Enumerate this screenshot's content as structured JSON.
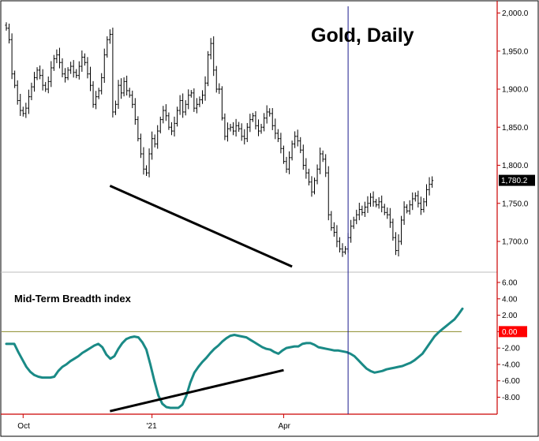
{
  "colors": {
    "background": "#ffffff",
    "frame": "#000000",
    "price_axis": "#cc0000",
    "bars": "#000000",
    "trendlines": "#000000",
    "breadth_line": "#1a8a86",
    "zero_line": "#8b8b2a",
    "vertical_marker": "#1c1c8c",
    "last_price_box": "#000000",
    "zero_box": "#ff0000"
  },
  "chart_data": [
    {
      "type": "ohlc",
      "title": "Gold, Daily",
      "ylim": [
        1655,
        2010
      ],
      "y_ticks": [
        {
          "value": 2000,
          "label": "2,000.0"
        },
        {
          "value": 1950,
          "label": "1,950.0"
        },
        {
          "value": 1900,
          "label": "1,900.0"
        },
        {
          "value": 1850,
          "label": "1,850.0"
        },
        {
          "value": 1800,
          "label": "1,800.0"
        },
        {
          "value": 1750,
          "label": "1,750.0"
        },
        {
          "value": 1700,
          "label": "1,700.0"
        }
      ],
      "last_price": {
        "value": 1780.2,
        "label": "1,780.2"
      },
      "trendline": {
        "from": {
          "bar": 37,
          "value": 1773
        },
        "to": {
          "bar": 102,
          "value": 1667
        }
      },
      "vertical_marker_bar": 122,
      "closes": [
        1980,
        1965,
        1920,
        1905,
        1885,
        1872,
        1868,
        1875,
        1890,
        1903,
        1915,
        1925,
        1918,
        1905,
        1900,
        1910,
        1928,
        1940,
        1945,
        1935,
        1920,
        1915,
        1925,
        1930,
        1922,
        1918,
        1930,
        1942,
        1935,
        1920,
        1905,
        1880,
        1890,
        1898,
        1915,
        1945,
        1965,
        1972,
        1870,
        1880,
        1905,
        1895,
        1910,
        1898,
        1892,
        1880,
        1860,
        1835,
        1815,
        1795,
        1790,
        1815,
        1835,
        1828,
        1845,
        1860,
        1872,
        1865,
        1850,
        1845,
        1855,
        1872,
        1885,
        1870,
        1880,
        1892,
        1895,
        1875,
        1880,
        1886,
        1892,
        1908,
        1945,
        1960,
        1925,
        1900,
        1900,
        1862,
        1838,
        1848,
        1850,
        1845,
        1852,
        1848,
        1838,
        1835,
        1850,
        1860,
        1865,
        1852,
        1845,
        1850,
        1862,
        1870,
        1868,
        1852,
        1842,
        1835,
        1822,
        1805,
        1795,
        1810,
        1828,
        1838,
        1832,
        1820,
        1800,
        1790,
        1778,
        1765,
        1780,
        1795,
        1815,
        1808,
        1790,
        1735,
        1718,
        1712,
        1700,
        1690,
        1686,
        1690,
        1705,
        1720,
        1728,
        1735,
        1742,
        1738,
        1745,
        1750,
        1758,
        1752,
        1748,
        1752,
        1745,
        1738,
        1735,
        1725,
        1705,
        1688,
        1700,
        1728,
        1745,
        1740,
        1748,
        1756,
        1760,
        1750,
        1742,
        1752,
        1768,
        1775,
        1780
      ]
    },
    {
      "type": "line",
      "title": "Mid-Term Breadth index",
      "ylim": [
        -9.9,
        7.0
      ],
      "y_ticks": [
        {
          "value": 6,
          "label": "6.00"
        },
        {
          "value": 4,
          "label": "4.00"
        },
        {
          "value": 2,
          "label": "2.00"
        },
        {
          "value": 0,
          "label": "0.00"
        },
        {
          "value": -2,
          "label": "-2.00"
        },
        {
          "value": -4,
          "label": "-4.00"
        },
        {
          "value": -6,
          "label": "-6.00"
        },
        {
          "value": -8,
          "label": "-8.00"
        }
      ],
      "highlight_value": {
        "value": 0,
        "label": "0.00"
      },
      "trendline": {
        "from": {
          "bar": 37,
          "value": -9.7
        },
        "to": {
          "bar": 99,
          "value": -4.7
        }
      },
      "series": [
        {
          "values": [
            -1.5,
            -1.5,
            -1.5,
            -2.5,
            -3.4,
            -4.3,
            -4.9,
            -5.3,
            -5.5,
            -5.6,
            -5.6,
            -5.6,
            -5.5,
            -4.8,
            -4.3,
            -4.0,
            -3.6,
            -3.3,
            -3.0,
            -2.6,
            -2.3,
            -2.0,
            -1.7,
            -1.5,
            -1.9,
            -2.8,
            -3.3,
            -3.0,
            -2.1,
            -1.4,
            -0.9,
            -0.7,
            -0.6,
            -0.7,
            -1.3,
            -2.2,
            -4.0,
            -6.0,
            -7.8,
            -8.8,
            -9.2,
            -9.3,
            -9.3,
            -9.3,
            -8.9,
            -7.8,
            -6.2,
            -5.0,
            -4.3,
            -3.7,
            -3.2,
            -2.6,
            -2.1,
            -1.7,
            -1.2,
            -0.8,
            -0.5,
            -0.4,
            -0.5,
            -0.6,
            -0.7,
            -1.0,
            -1.3,
            -1.6,
            -1.9,
            -2.1,
            -2.2,
            -2.5,
            -2.7,
            -2.3,
            -2.0,
            -1.9,
            -1.8,
            -1.8,
            -1.5,
            -1.4,
            -1.4,
            -1.6,
            -1.9,
            -2.0,
            -2.1,
            -2.2,
            -2.3,
            -2.3,
            -2.4,
            -2.5,
            -2.7,
            -3.0,
            -3.5,
            -4.0,
            -4.5,
            -4.8,
            -5.0,
            -4.9,
            -4.8,
            -4.6,
            -4.5,
            -4.4,
            -4.3,
            -4.2,
            -4.0,
            -3.8,
            -3.5,
            -3.1,
            -2.7,
            -2.0,
            -1.3,
            -0.6,
            -0.1,
            0.3,
            0.7,
            1.1,
            1.5,
            2.1,
            2.8
          ]
        }
      ]
    }
  ],
  "x_axis": {
    "ticks": [
      {
        "label": "Oct",
        "bar": 6
      },
      {
        "label": "'21",
        "bar": 52
      },
      {
        "label": "Apr",
        "bar": 99
      }
    ]
  }
}
